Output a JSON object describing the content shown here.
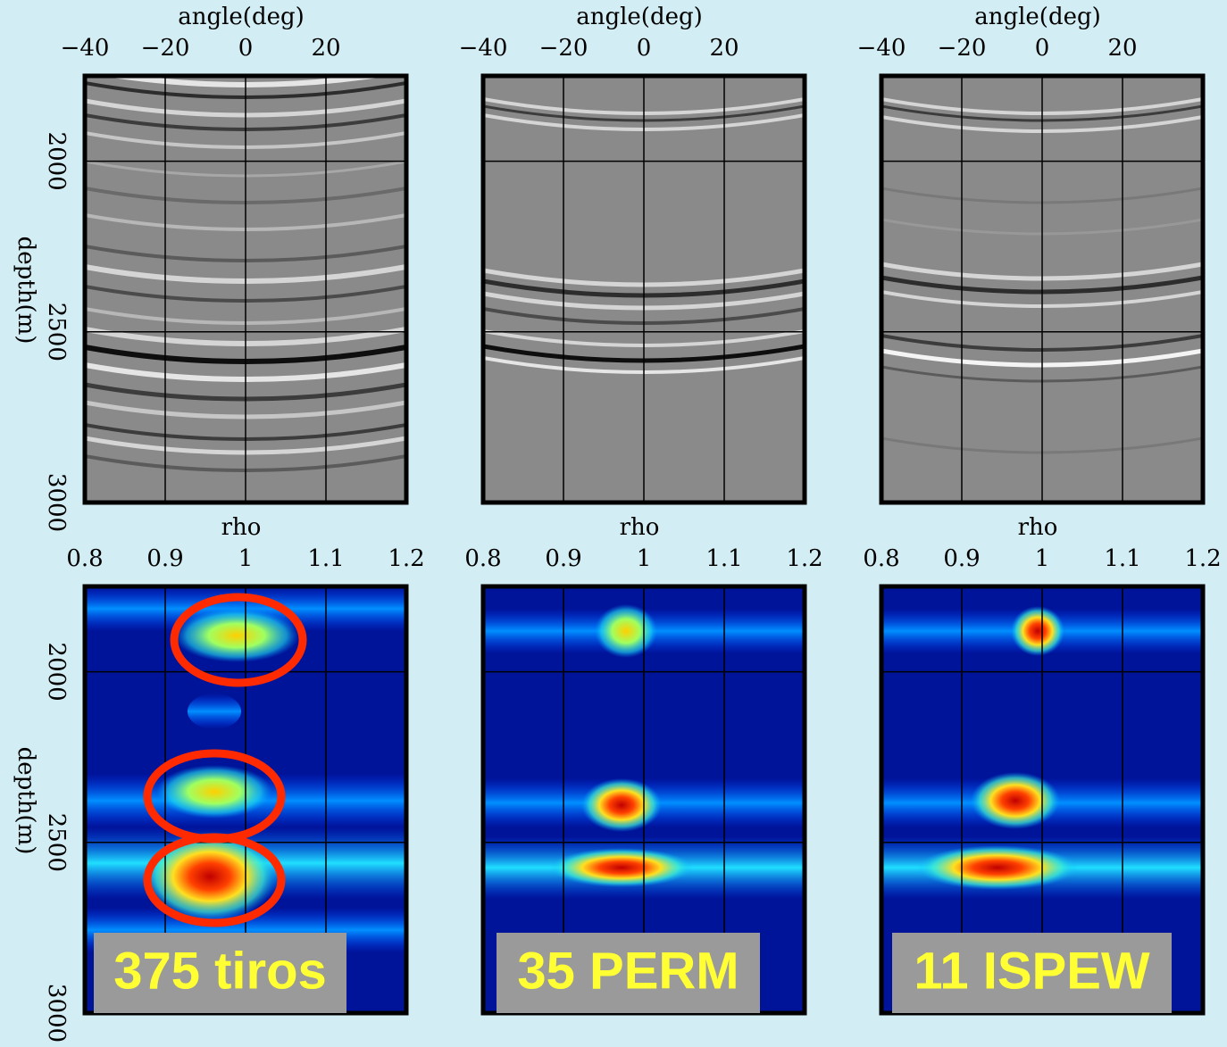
{
  "chart_data": [
    {
      "type": "image",
      "xlabel": "angle(deg)",
      "xlim": [
        -40,
        40
      ],
      "xticks": [
        {
          "value": -40,
          "label": "−40"
        },
        {
          "value": -20,
          "label": "−20"
        },
        0,
        20
      ],
      "ylabel": "depth(m)",
      "ylim": [
        1750,
        3000
      ],
      "yticks": [
        2000,
        2500,
        3000
      ]
    },
    {
      "type": "image",
      "xlabel": "angle(deg)",
      "xlim": [
        -40,
        40
      ],
      "xticks": [
        {
          "value": -40,
          "label": "−40"
        },
        {
          "value": -20,
          "label": "−20"
        },
        0,
        20
      ]
    },
    {
      "type": "image",
      "xlabel": "angle(deg)",
      "xlim": [
        -40,
        40
      ],
      "xticks": [
        {
          "value": -40,
          "label": "−40"
        },
        {
          "value": -20,
          "label": "−20"
        },
        0,
        20
      ]
    },
    {
      "type": "heatmap",
      "xlabel": "rho",
      "xlim": [
        0.8,
        1.2
      ],
      "xticks": [
        0.8,
        0.9,
        1,
        1.1,
        1.2
      ],
      "ylabel": "depth(m)",
      "ylim": [
        1750,
        3000
      ],
      "yticks": [
        2000,
        2500,
        3000
      ],
      "annotation": "375 tiros"
    },
    {
      "type": "heatmap",
      "xlabel": "rho",
      "xlim": [
        0.8,
        1.2
      ],
      "xticks": [
        0.8,
        0.9,
        1,
        1.1,
        1.2
      ],
      "annotation": "35 PERM"
    },
    {
      "type": "heatmap",
      "xlabel": "rho",
      "xlim": [
        0.8,
        1.2
      ],
      "xticks": [
        0.8,
        0.9,
        1,
        1.1,
        1.2
      ],
      "annotation": "11 ISPEW"
    }
  ]
}
